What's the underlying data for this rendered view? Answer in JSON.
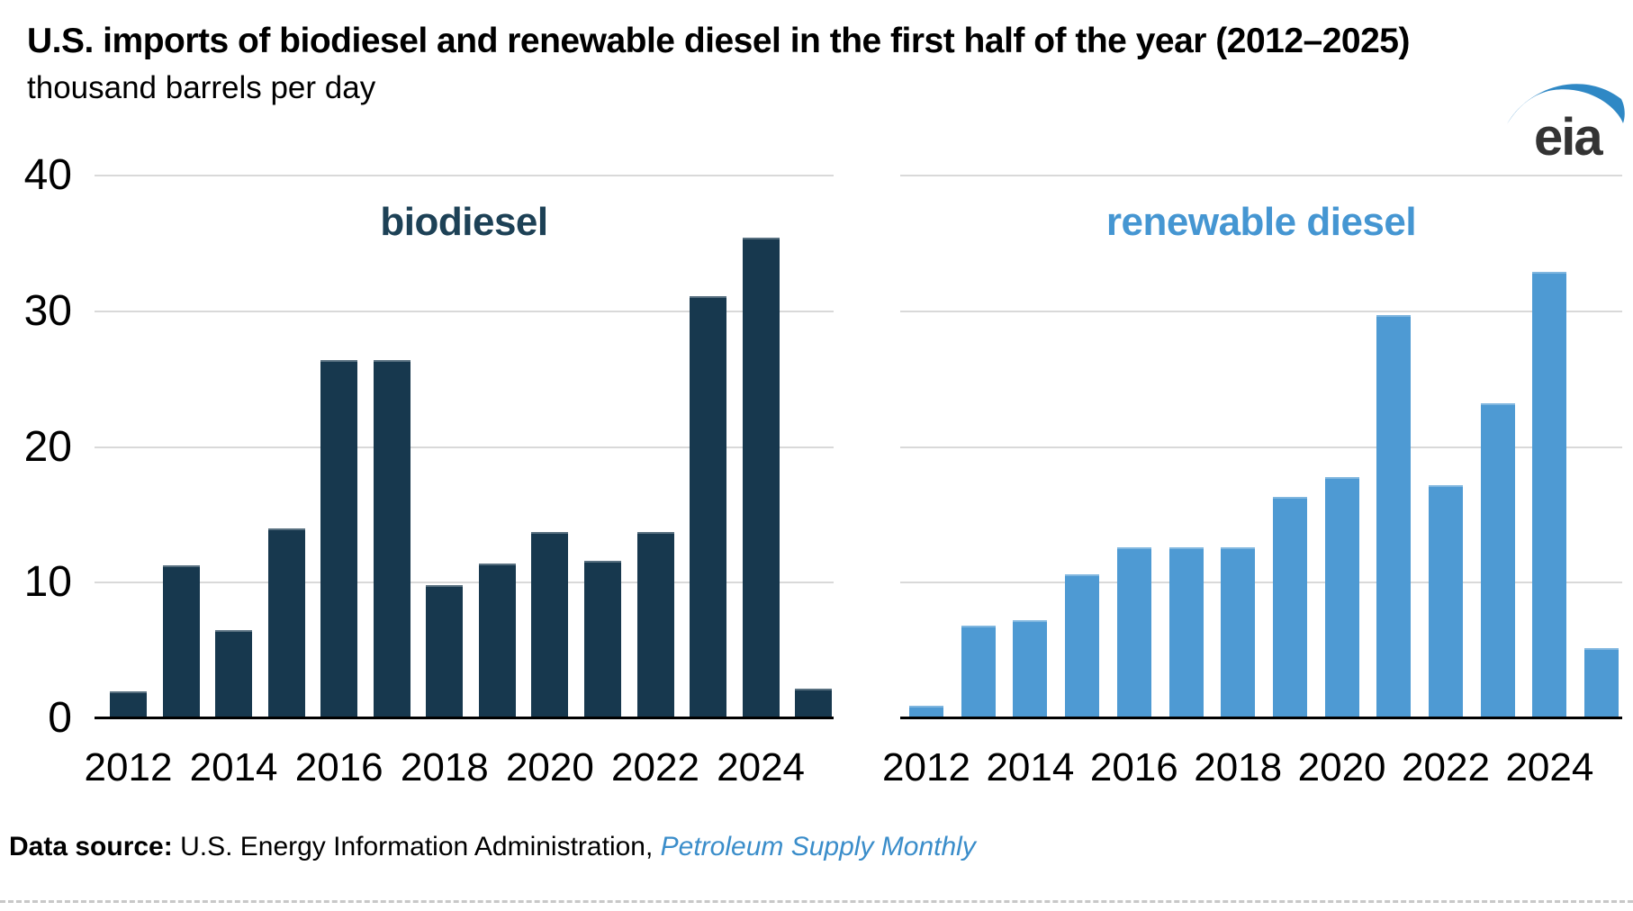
{
  "header": {
    "title": "U.S. imports of biodiesel and renewable diesel in the first half of the year (2012–2025)",
    "subtitle": "thousand barrels per day"
  },
  "logo": {
    "text": "eia",
    "swoosh_color": "#2f88c5",
    "text_color": "#333333"
  },
  "source": {
    "label": "Data source: ",
    "org": "U.S. Energy Information Administration, ",
    "publication": "Petroleum Supply Monthly",
    "publication_color": "#3a8dca"
  },
  "colors": {
    "biodiesel_bar": "#17384e",
    "renewable_bar": "#4e9ad3",
    "gridline": "#d9d9d9",
    "axis": "#000000",
    "dashed_rule": "#c8c8c8"
  },
  "chart_data": [
    {
      "type": "bar",
      "title": "biodiesel",
      "x": [
        2012,
        2013,
        2014,
        2015,
        2016,
        2017,
        2018,
        2019,
        2020,
        2021,
        2022,
        2023,
        2024,
        2025
      ],
      "values": [
        2.0,
        11.3,
        6.5,
        14.0,
        26.4,
        26.4,
        9.8,
        11.4,
        13.7,
        11.6,
        13.7,
        31.1,
        35.4,
        2.2
      ],
      "xtick_labels": [
        "2012",
        "2014",
        "2016",
        "2018",
        "2020",
        "2022",
        "2024"
      ],
      "yticks": [
        0,
        10,
        20,
        30,
        40
      ],
      "ylim": [
        0,
        40
      ],
      "grid": true,
      "legend_position": "none",
      "bar_color": "#17384e",
      "title_color": "#1d4156"
    },
    {
      "type": "bar",
      "title": "renewable diesel",
      "x": [
        2012,
        2013,
        2014,
        2015,
        2016,
        2017,
        2018,
        2019,
        2020,
        2021,
        2022,
        2023,
        2024,
        2025
      ],
      "values": [
        0.9,
        6.8,
        7.2,
        10.6,
        12.6,
        12.6,
        12.6,
        16.3,
        17.8,
        29.7,
        17.2,
        23.2,
        32.9,
        5.2
      ],
      "xtick_labels": [
        "2012",
        "2014",
        "2016",
        "2018",
        "2020",
        "2022",
        "2024"
      ],
      "yticks": [
        0,
        10,
        20,
        30,
        40
      ],
      "ylim": [
        0,
        40
      ],
      "grid": true,
      "legend_position": "none",
      "bar_color": "#4e9ad3",
      "title_color": "#4596d2"
    }
  ]
}
